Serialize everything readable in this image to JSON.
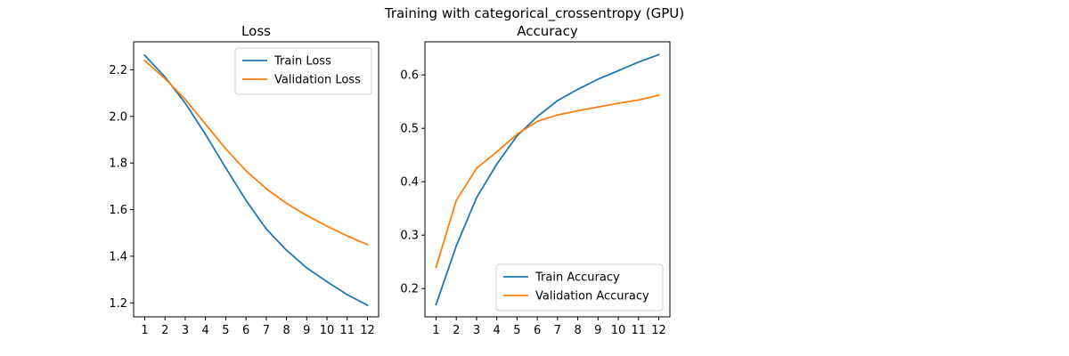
{
  "figure": {
    "suptitle": "Training with categorical_crossentropy (GPU)"
  },
  "chart_data": [
    {
      "type": "line",
      "title": "Loss",
      "xlabel": "",
      "ylabel": "",
      "x": [
        1,
        2,
        3,
        4,
        5,
        6,
        7,
        8,
        9,
        10,
        11,
        12
      ],
      "xlim": [
        0.45,
        12.55
      ],
      "ylim": [
        1.14,
        2.32
      ],
      "yticks": [
        1.2,
        1.4,
        1.6,
        1.8,
        2.0,
        2.2
      ],
      "ytick_labels": [
        "1.2",
        "1.4",
        "1.6",
        "1.8",
        "2.0",
        "2.2"
      ],
      "xtick_labels": [
        "1",
        "2",
        "3",
        "4",
        "5",
        "6",
        "7",
        "8",
        "9",
        "10",
        "11",
        "12"
      ],
      "grid": false,
      "legend": "top-right",
      "series": [
        {
          "name": "Train Loss",
          "color": "#1f77b4",
          "values": [
            2.262,
            2.169,
            2.057,
            1.923,
            1.779,
            1.64,
            1.517,
            1.426,
            1.35,
            1.291,
            1.235,
            1.19
          ]
        },
        {
          "name": "Validation Loss",
          "color": "#ff7f0e",
          "values": [
            2.239,
            2.162,
            2.073,
            1.967,
            1.861,
            1.767,
            1.69,
            1.627,
            1.575,
            1.529,
            1.487,
            1.45
          ]
        }
      ]
    },
    {
      "type": "line",
      "title": "Accuracy",
      "xlabel": "",
      "ylabel": "",
      "x": [
        1,
        2,
        3,
        4,
        5,
        6,
        7,
        8,
        9,
        10,
        11,
        12
      ],
      "xlim": [
        0.45,
        12.55
      ],
      "ylim": [
        0.147,
        0.662
      ],
      "yticks": [
        0.2,
        0.3,
        0.4,
        0.5,
        0.6
      ],
      "ytick_labels": [
        "0.2",
        "0.3",
        "0.4",
        "0.5",
        "0.6"
      ],
      "xtick_labels": [
        "1",
        "2",
        "3",
        "4",
        "5",
        "6",
        "7",
        "8",
        "9",
        "10",
        "11",
        "12"
      ],
      "grid": false,
      "legend": "bottom-right",
      "series": [
        {
          "name": "Train Accuracy",
          "color": "#1f77b4",
          "values": [
            0.17,
            0.28,
            0.37,
            0.433,
            0.486,
            0.522,
            0.552,
            0.573,
            0.592,
            0.608,
            0.624,
            0.638
          ]
        },
        {
          "name": "Validation Accuracy",
          "color": "#ff7f0e",
          "values": [
            0.24,
            0.365,
            0.425,
            0.456,
            0.489,
            0.513,
            0.525,
            0.533,
            0.54,
            0.547,
            0.553,
            0.562
          ]
        }
      ]
    }
  ]
}
